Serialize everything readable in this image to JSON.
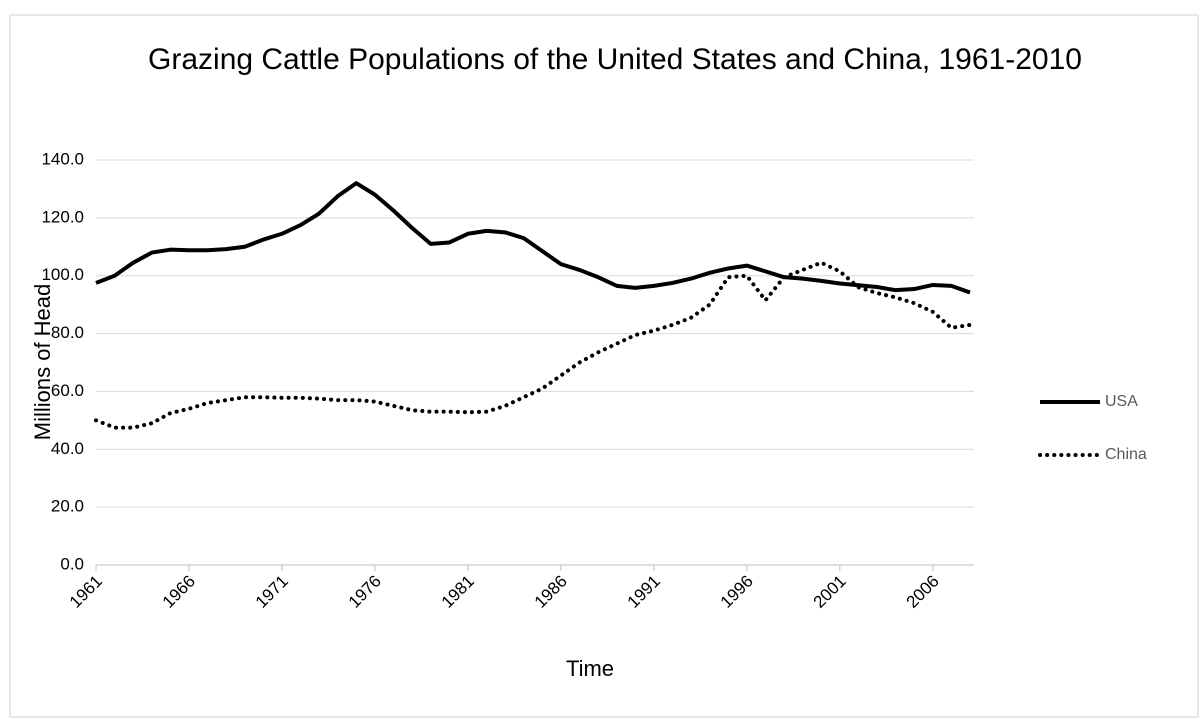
{
  "chart_data": {
    "type": "line",
    "title": "Grazing Cattle Populations of the United States and China, 1961-2010",
    "x_label": "Time",
    "y_label": "Millions of Head",
    "x": [
      1961,
      1962,
      1963,
      1964,
      1965,
      1966,
      1967,
      1968,
      1969,
      1970,
      1971,
      1972,
      1973,
      1974,
      1975,
      1976,
      1977,
      1978,
      1979,
      1980,
      1981,
      1982,
      1983,
      1984,
      1985,
      1986,
      1987,
      1988,
      1989,
      1990,
      1991,
      1992,
      1993,
      1994,
      1995,
      1996,
      1997,
      1998,
      1999,
      2000,
      2001,
      2002,
      2003,
      2004,
      2005,
      2006,
      2007,
      2008
    ],
    "series": [
      {
        "name": "USA",
        "color": "#000000",
        "style": "solid",
        "values": [
          97.5,
          100,
          104.5,
          108,
          109,
          108.8,
          108.8,
          109.2,
          110,
          112.5,
          114.5,
          117.5,
          121.5,
          127.5,
          132,
          128,
          122.5,
          116.5,
          111,
          111.5,
          114.5,
          115.5,
          115,
          113,
          108.5,
          104,
          102,
          99.5,
          96.5,
          95.8,
          96.5,
          97.5,
          99,
          101,
          102.5,
          103.5,
          101.5,
          99.5,
          99,
          98.2,
          97.3,
          96.7,
          96.1,
          95,
          95.4,
          96.8,
          96.5,
          94.2
        ]
      },
      {
        "name": "China",
        "color": "#000000",
        "style": "dotted",
        "values": [
          50,
          47.5,
          47.5,
          49,
          52.5,
          54,
          56,
          57,
          58,
          58,
          57.8,
          57.8,
          57.5,
          57,
          57,
          56.5,
          55,
          53.5,
          53,
          53,
          52.8,
          53,
          55,
          58,
          61,
          65.5,
          70,
          73.5,
          76.5,
          79.5,
          81,
          83,
          85.5,
          90,
          99.5,
          100,
          91.5,
          99.5,
          102,
          104.5,
          101.5,
          96,
          94,
          92.5,
          90.5,
          87.5,
          82,
          83
        ]
      }
    ],
    "xlim": [
      1961,
      2008
    ],
    "xticks": [
      1961,
      1966,
      1971,
      1976,
      1981,
      1986,
      1991,
      1996,
      2001,
      2006
    ],
    "ylim": [
      0,
      140
    ],
    "yticks": [
      {
        "value": 0,
        "label": "0.0"
      },
      {
        "value": 20,
        "label": "20.0"
      },
      {
        "value": 40,
        "label": "40.0"
      },
      {
        "value": 60,
        "label": "60.0"
      },
      {
        "value": 80,
        "label": "80.0"
      },
      {
        "value": 100,
        "label": "100.0"
      },
      {
        "value": 120,
        "label": "120.0"
      },
      {
        "value": 140,
        "label": "140.0"
      }
    ],
    "grid": true,
    "legend": "right"
  }
}
